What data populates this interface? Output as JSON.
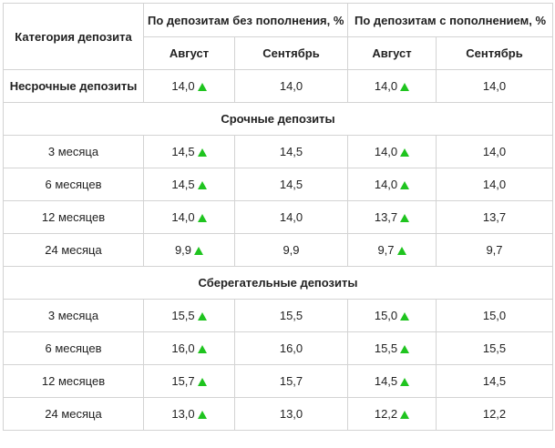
{
  "header": {
    "category": "Категория депозита",
    "group_no_topup": "По депозитам без пополнения, %",
    "group_topup": "По депозитам с пополнением, %",
    "month_aug": "Август",
    "month_sep": "Сентябрь"
  },
  "colors": {
    "up_arrow": "#1fc41f",
    "border": "#d3d3d3"
  },
  "rows": {
    "indefinite": {
      "label": "Несрочные депозиты",
      "a1": "14,0",
      "s1": "14,0",
      "a2": "14,0",
      "s2": "14,0"
    },
    "section_term": "Срочные депозиты",
    "term": [
      {
        "label": "3 месяца",
        "a1": "14,5",
        "s1": "14,5",
        "a2": "14,0",
        "s2": "14,0"
      },
      {
        "label": "6 месяцев",
        "a1": "14,5",
        "s1": "14,5",
        "a2": "14,0",
        "s2": "14,0"
      },
      {
        "label": "12 месяцев",
        "a1": "14,0",
        "s1": "14,0",
        "a2": "13,7",
        "s2": "13,7"
      },
      {
        "label": "24 месяца",
        "a1": "9,9",
        "s1": "9,9",
        "a2": "9,7",
        "s2": "9,7"
      }
    ],
    "section_savings": "Сберегательные депозиты",
    "savings": [
      {
        "label": "3 месяца",
        "a1": "15,5",
        "s1": "15,5",
        "a2": "15,0",
        "s2": "15,0"
      },
      {
        "label": "6 месяцев",
        "a1": "16,0",
        "s1": "16,0",
        "a2": "15,5",
        "s2": "15,5"
      },
      {
        "label": "12 месяцев",
        "a1": "15,7",
        "s1": "15,7",
        "a2": "14,5",
        "s2": "14,5"
      },
      {
        "label": "24 месяца",
        "a1": "13,0",
        "s1": "13,0",
        "a2": "12,2",
        "s2": "12,2"
      }
    ]
  }
}
